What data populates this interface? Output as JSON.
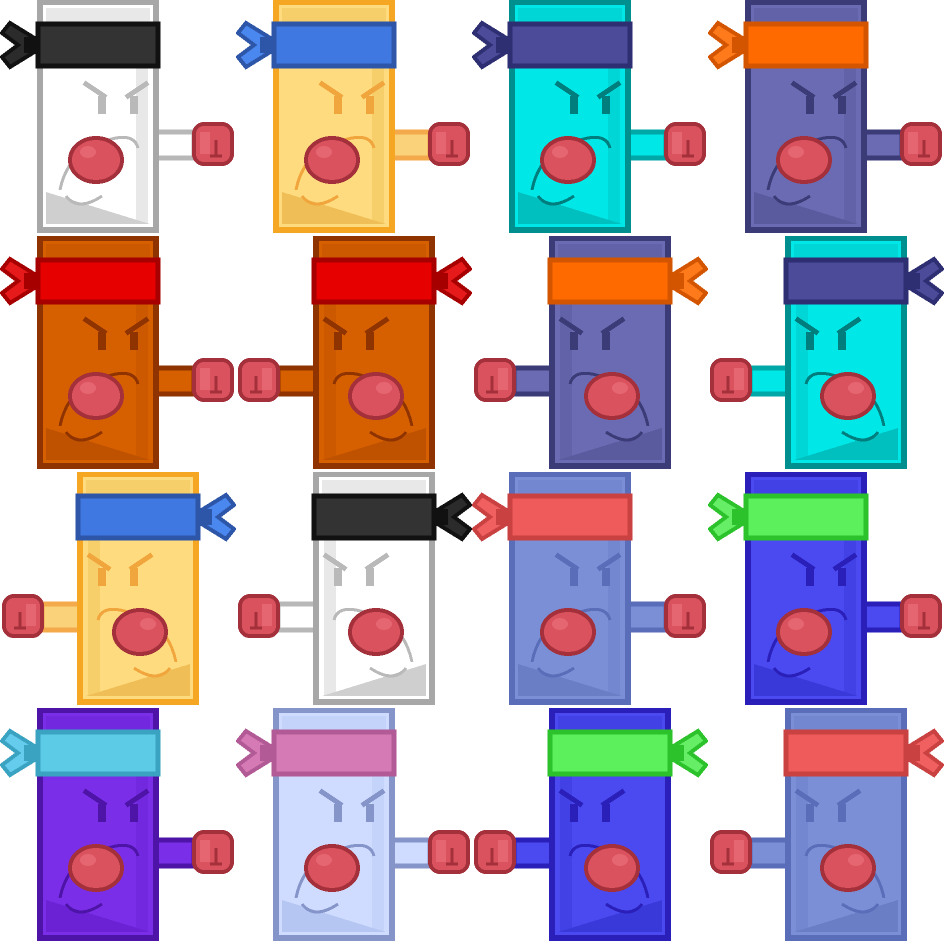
{
  "sprite_sheet": {
    "columns": 4,
    "rows": 4,
    "sprites": [
      {
        "name": "sprite-white-black-headband",
        "facing": "right",
        "body": "#ffffff",
        "body_mid": "#e8e8e8",
        "body_shade": "#cfcfcf",
        "outline": "#a7a7a7",
        "face": "#b9b9b9",
        "band": "#333333",
        "band_dark": "#111111",
        "bow": "#2b2b2b",
        "bow_dark": "#111111",
        "arm": "#ffffff",
        "arm_outline": "#b8b8b8"
      },
      {
        "name": "sprite-yellow-blue-headband",
        "facing": "right",
        "body": "#ffdb7f",
        "body_mid": "#f7cf6a",
        "body_shade": "#efbe57",
        "outline": "#f5a623",
        "face": "#f0a53d",
        "band": "#3f78e0",
        "band_dark": "#2e56a8",
        "bow": "#4a87ef",
        "bow_dark": "#2e56a8",
        "arm": "#f9d27a",
        "arm_outline": "#f4a94a"
      },
      {
        "name": "sprite-cyan-navy-headband",
        "facing": "right",
        "body": "#00e7e7",
        "body_mid": "#00d6d6",
        "body_shade": "#00bfbf",
        "outline": "#008f8f",
        "face": "#007e7e",
        "band": "#4b4b99",
        "band_dark": "#2e2e73",
        "bow": "#4b4b99",
        "bow_dark": "#2e2e73",
        "arm": "#00e7e7",
        "arm_outline": "#00a7a7"
      },
      {
        "name": "sprite-slate-orange-headband",
        "facing": "right",
        "body": "#6b6bb3",
        "body_mid": "#6262a8",
        "body_shade": "#5a5a9f",
        "outline": "#3b3b78",
        "face": "#3b3b78",
        "band": "#ff6a00",
        "band_dark": "#d45500",
        "bow": "#ff7a1a",
        "bow_dark": "#d45500",
        "arm": "#6b6bb3",
        "arm_outline": "#3b3b78"
      },
      {
        "name": "sprite-rust-red-headband-right",
        "facing": "right",
        "body": "#d65f00",
        "body_mid": "#cc5900",
        "body_shade": "#bf5200",
        "outline": "#8f3300",
        "face": "#8f3300",
        "band": "#e60000",
        "band_dark": "#a60000",
        "bow": "#e61a1a",
        "bow_dark": "#a60000",
        "arm": "#d65f00",
        "arm_outline": "#8f3300"
      },
      {
        "name": "sprite-rust-red-headband-left",
        "facing": "left",
        "body": "#d65f00",
        "body_mid": "#cc5900",
        "body_shade": "#bf5200",
        "outline": "#8f3300",
        "face": "#8f3300",
        "band": "#e60000",
        "band_dark": "#a60000",
        "bow": "#e61a1a",
        "bow_dark": "#a60000",
        "arm": "#d65f00",
        "arm_outline": "#8f3300"
      },
      {
        "name": "sprite-slate-orange-headband-left",
        "facing": "left",
        "body": "#6b6bb3",
        "body_mid": "#6262a8",
        "body_shade": "#5a5a9f",
        "outline": "#3b3b78",
        "face": "#3b3b78",
        "band": "#ff6a00",
        "band_dark": "#d45500",
        "bow": "#ff7a1a",
        "bow_dark": "#d45500",
        "arm": "#6b6bb3",
        "arm_outline": "#3b3b78"
      },
      {
        "name": "sprite-cyan-navy-headband-left",
        "facing": "left",
        "body": "#00e7e7",
        "body_mid": "#00d6d6",
        "body_shade": "#00bfbf",
        "outline": "#008f8f",
        "face": "#007e7e",
        "band": "#4b4b99",
        "band_dark": "#2e2e73",
        "bow": "#4b4b99",
        "bow_dark": "#2e2e73",
        "arm": "#00e7e7",
        "arm_outline": "#00a7a7"
      },
      {
        "name": "sprite-yellow-blue-headband-left",
        "facing": "left",
        "body": "#ffdb7f",
        "body_mid": "#f7cf6a",
        "body_shade": "#efbe57",
        "outline": "#f5a623",
        "face": "#f0a53d",
        "band": "#3f78e0",
        "band_dark": "#2e56a8",
        "bow": "#4a87ef",
        "bow_dark": "#2e56a8",
        "arm": "#f9d27a",
        "arm_outline": "#f4a94a"
      },
      {
        "name": "sprite-white-black-headband-left",
        "facing": "left",
        "body": "#ffffff",
        "body_mid": "#e8e8e8",
        "body_shade": "#cfcfcf",
        "outline": "#a7a7a7",
        "face": "#b9b9b9",
        "band": "#333333",
        "band_dark": "#111111",
        "bow": "#2b2b2b",
        "bow_dark": "#111111",
        "arm": "#ffffff",
        "arm_outline": "#b8b8b8"
      },
      {
        "name": "sprite-periwinkle-salmon-headband",
        "facing": "right",
        "body": "#7b8fd6",
        "body_mid": "#7287cf",
        "body_shade": "#6a7ec6",
        "outline": "#5a6db8",
        "face": "#5a6db8",
        "band": "#ef5b5b",
        "band_dark": "#c94141",
        "bow": "#f06060",
        "bow_dark": "#c94141",
        "arm": "#7b8fd6",
        "arm_outline": "#5a6db8"
      },
      {
        "name": "sprite-blue-green-headband",
        "facing": "right",
        "body": "#4a4af0",
        "body_mid": "#4141e6",
        "body_shade": "#3939da",
        "outline": "#2a1fb8",
        "face": "#2a1fb8",
        "band": "#5cf05c",
        "band_dark": "#2bc22b",
        "bow": "#66ee66",
        "bow_dark": "#2bc22b",
        "arm": "#4a4af0",
        "arm_outline": "#2a1fb8"
      },
      {
        "name": "sprite-violet-sky-headband",
        "facing": "right",
        "body": "#7a2ee8",
        "body_mid": "#7228df",
        "body_shade": "#6a22d4",
        "outline": "#4e14a8",
        "face": "#4e14a8",
        "band": "#5ccbe6",
        "band_dark": "#3aa3c2",
        "bow": "#66ccee",
        "bow_dark": "#3aa3c2",
        "arm": "#7a2ee8",
        "arm_outline": "#4e14a8"
      },
      {
        "name": "sprite-pale-blue-pink-headband",
        "facing": "right",
        "body": "#cfdcff",
        "body_mid": "#c4d3fa",
        "body_shade": "#b6c6f2",
        "outline": "#8595c9",
        "face": "#8595c9",
        "band": "#d67ab5",
        "band_dark": "#b25a95",
        "bow": "#d67ab5",
        "bow_dark": "#b25a95",
        "arm": "#cfdcff",
        "arm_outline": "#8595c9"
      },
      {
        "name": "sprite-blue-green-headband-left",
        "facing": "left",
        "body": "#4a4af0",
        "body_mid": "#4141e6",
        "body_shade": "#3939da",
        "outline": "#2a1fb8",
        "face": "#2a1fb8",
        "band": "#5cf05c",
        "band_dark": "#2bc22b",
        "bow": "#66ee66",
        "bow_dark": "#2bc22b",
        "arm": "#4a4af0",
        "arm_outline": "#2a1fb8"
      },
      {
        "name": "sprite-periwinkle-salmon-headband-left",
        "facing": "left",
        "body": "#7b8fd6",
        "body_mid": "#7287cf",
        "body_shade": "#6a7ec6",
        "outline": "#5a6db8",
        "face": "#5a6db8",
        "band": "#ef5b5b",
        "band_dark": "#c94141",
        "bow": "#f06060",
        "bow_dark": "#c94141",
        "arm": "#7b8fd6",
        "arm_outline": "#5a6db8"
      }
    ]
  }
}
